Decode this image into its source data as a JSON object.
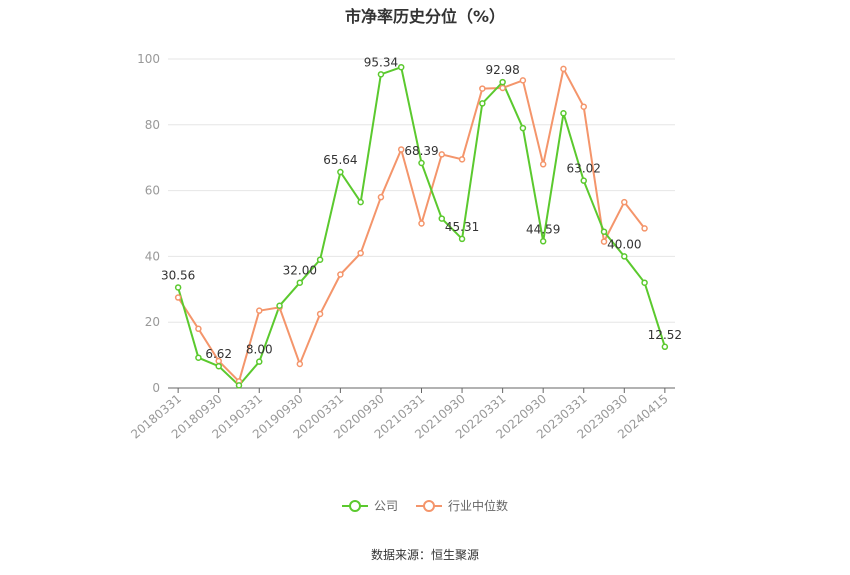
{
  "title": "市净率历史分位（%）",
  "source": "数据来源：恒生聚源",
  "colors": {
    "company": "#5bc92e",
    "industry": "#f4956b",
    "axis": "#666666",
    "grid": "#e6e6e6",
    "tick": "#999999",
    "label": "#333333"
  },
  "chart_data": {
    "type": "line",
    "x": [
      "20180331",
      "20180630",
      "20180930",
      "20181231",
      "20190331",
      "20190630",
      "20190930",
      "20191231",
      "20200331",
      "20200630",
      "20200930",
      "20201231",
      "20210331",
      "20210630",
      "20210930",
      "20211231",
      "20220331",
      "20220630",
      "20220930",
      "20221231",
      "20230331",
      "20230630",
      "20230930",
      "20231231",
      "20240415"
    ],
    "xticks": [
      "20180331",
      "20180930",
      "20190331",
      "20190930",
      "20200331",
      "20200930",
      "20210331",
      "20210930",
      "20220331",
      "20220930",
      "20230331",
      "20230930",
      "20240415"
    ],
    "ylim": [
      0,
      100
    ],
    "yticks": [
      0,
      20,
      40,
      60,
      80,
      100
    ],
    "series": [
      {
        "name": "公司",
        "color": "#5bc92e",
        "values": [
          30.56,
          9.2,
          6.62,
          0.8,
          8.0,
          25.0,
          32.0,
          39.0,
          65.64,
          56.5,
          95.34,
          97.5,
          68.39,
          51.5,
          45.31,
          86.5,
          92.98,
          79.0,
          44.59,
          83.5,
          63.02,
          47.5,
          40.0,
          32.0,
          12.52
        ]
      },
      {
        "name": "行业中位数",
        "color": "#f4956b",
        "values": [
          27.5,
          18.0,
          8.2,
          2.0,
          23.5,
          24.5,
          7.3,
          22.5,
          34.5,
          41.0,
          58.0,
          72.5,
          50.0,
          71.0,
          69.5,
          91.0,
          91.2,
          93.5,
          68.0,
          97.0,
          85.5,
          44.5,
          56.5,
          48.5,
          null
        ]
      }
    ],
    "data_labels": [
      {
        "index": 0,
        "text": "30.56"
      },
      {
        "index": 2,
        "text": "6.62"
      },
      {
        "index": 4,
        "text": "8.00"
      },
      {
        "index": 6,
        "text": "32.00"
      },
      {
        "index": 8,
        "text": "65.64"
      },
      {
        "index": 10,
        "text": "95.34"
      },
      {
        "index": 12,
        "text": "68.39"
      },
      {
        "index": 14,
        "text": "45.31"
      },
      {
        "index": 16,
        "text": "92.98"
      },
      {
        "index": 18,
        "text": "44.59"
      },
      {
        "index": 20,
        "text": "63.02"
      },
      {
        "index": 22,
        "text": "40.00"
      },
      {
        "index": 24,
        "text": "12.52"
      }
    ]
  },
  "legend": [
    {
      "label": "公司",
      "color": "#5bc92e"
    },
    {
      "label": "行业中位数",
      "color": "#f4956b"
    }
  ]
}
